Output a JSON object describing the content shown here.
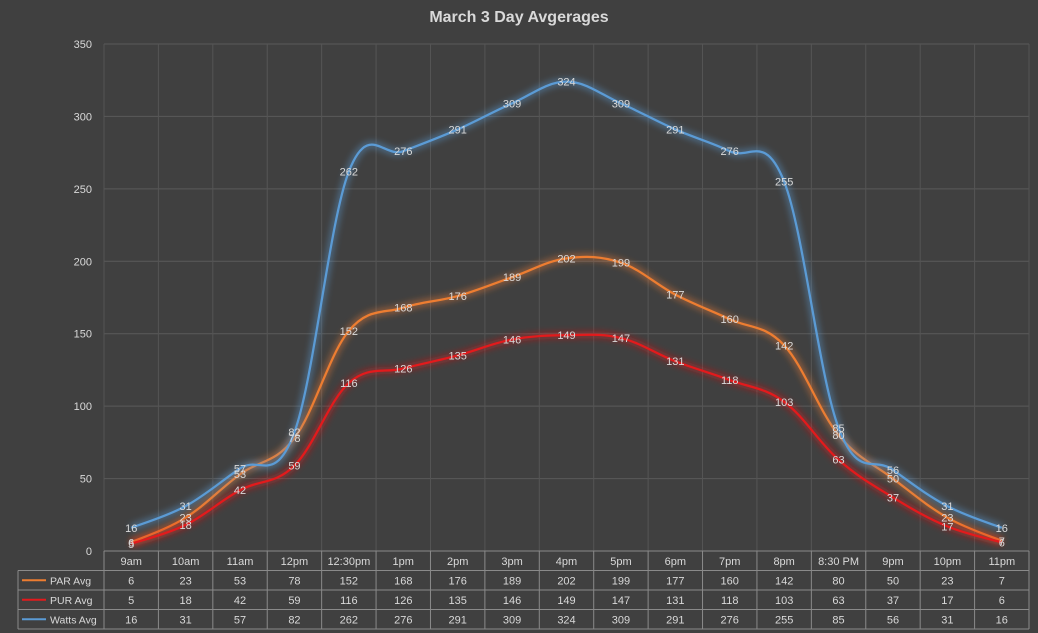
{
  "chart_data": {
    "type": "line",
    "title": "March 3 Day Avgerages",
    "categories": [
      "9am",
      "10am",
      "11am",
      "12pm",
      "12:30pm",
      "1pm",
      "2pm",
      "3pm",
      "4pm",
      "5pm",
      "6pm",
      "7pm",
      "8pm",
      "8:30 PM",
      "9pm",
      "10pm",
      "11pm"
    ],
    "ylim": [
      0,
      350
    ],
    "yticks": [
      0,
      50,
      100,
      150,
      200,
      250,
      300,
      350
    ],
    "grid": true,
    "data_table": true,
    "series": [
      {
        "name": "PAR Avg",
        "color": "#ed7d31",
        "values": [
          6,
          23,
          53,
          78,
          152,
          168,
          176,
          189,
          202,
          199,
          177,
          160,
          142,
          80,
          50,
          23,
          7
        ]
      },
      {
        "name": "PUR Avg",
        "color": "#e31a1c",
        "values": [
          5,
          18,
          42,
          59,
          116,
          126,
          135,
          146,
          149,
          147,
          131,
          118,
          103,
          63,
          37,
          17,
          6
        ]
      },
      {
        "name": "Watts Avg",
        "color": "#5b9bd5",
        "values": [
          16,
          31,
          57,
          82,
          262,
          276,
          291,
          309,
          324,
          309,
          291,
          276,
          255,
          85,
          56,
          31,
          16
        ]
      }
    ]
  }
}
